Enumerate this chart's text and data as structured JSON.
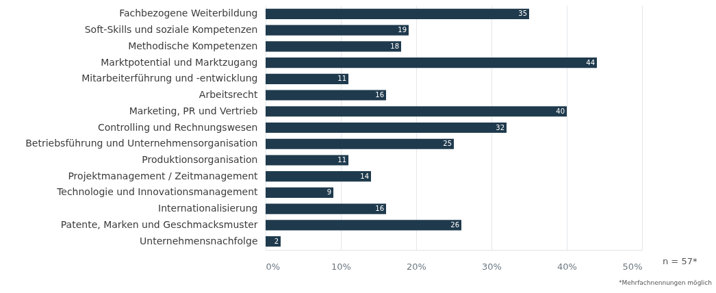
{
  "chart_data": {
    "type": "bar",
    "orientation": "horizontal",
    "categories": [
      "Fachbezogene Weiterbildung",
      "Soft-Skills und soziale Kompetenzen",
      "Methodische Kompetenzen",
      "Marktpotential und Marktzugang",
      "Mitarbeiterführung und -entwicklung",
      "Arbeitsrecht",
      "Marketing, PR und Vertrieb",
      "Controlling und Rechnungswesen",
      "Betriebsführung und Unternehmensorganisation",
      "Produktionsorganisation",
      "Projektmanagement / Zeitmanagement",
      "Technologie und Innovationsmanagement",
      "Internationalisierung",
      "Patente, Marken und Geschmacksmuster",
      "Unternehmensnachfolge"
    ],
    "values": [
      35,
      19,
      18,
      44,
      11,
      16,
      40,
      32,
      25,
      11,
      14,
      9,
      16,
      26,
      2
    ],
    "color": "#1f3a4d",
    "xlim": [
      0,
      50
    ],
    "xticks": [
      {
        "value": 0,
        "label": "0%"
      },
      {
        "value": 10,
        "label": "10%"
      },
      {
        "value": 20,
        "label": "20%"
      },
      {
        "value": 30,
        "label": "30%"
      },
      {
        "value": 40,
        "label": "40%"
      },
      {
        "value": 50,
        "label": "50%"
      }
    ],
    "grid": "x",
    "data_labels": true,
    "annotations": [
      "n = 57*",
      "*Mehrfachnennungen möglich"
    ]
  }
}
